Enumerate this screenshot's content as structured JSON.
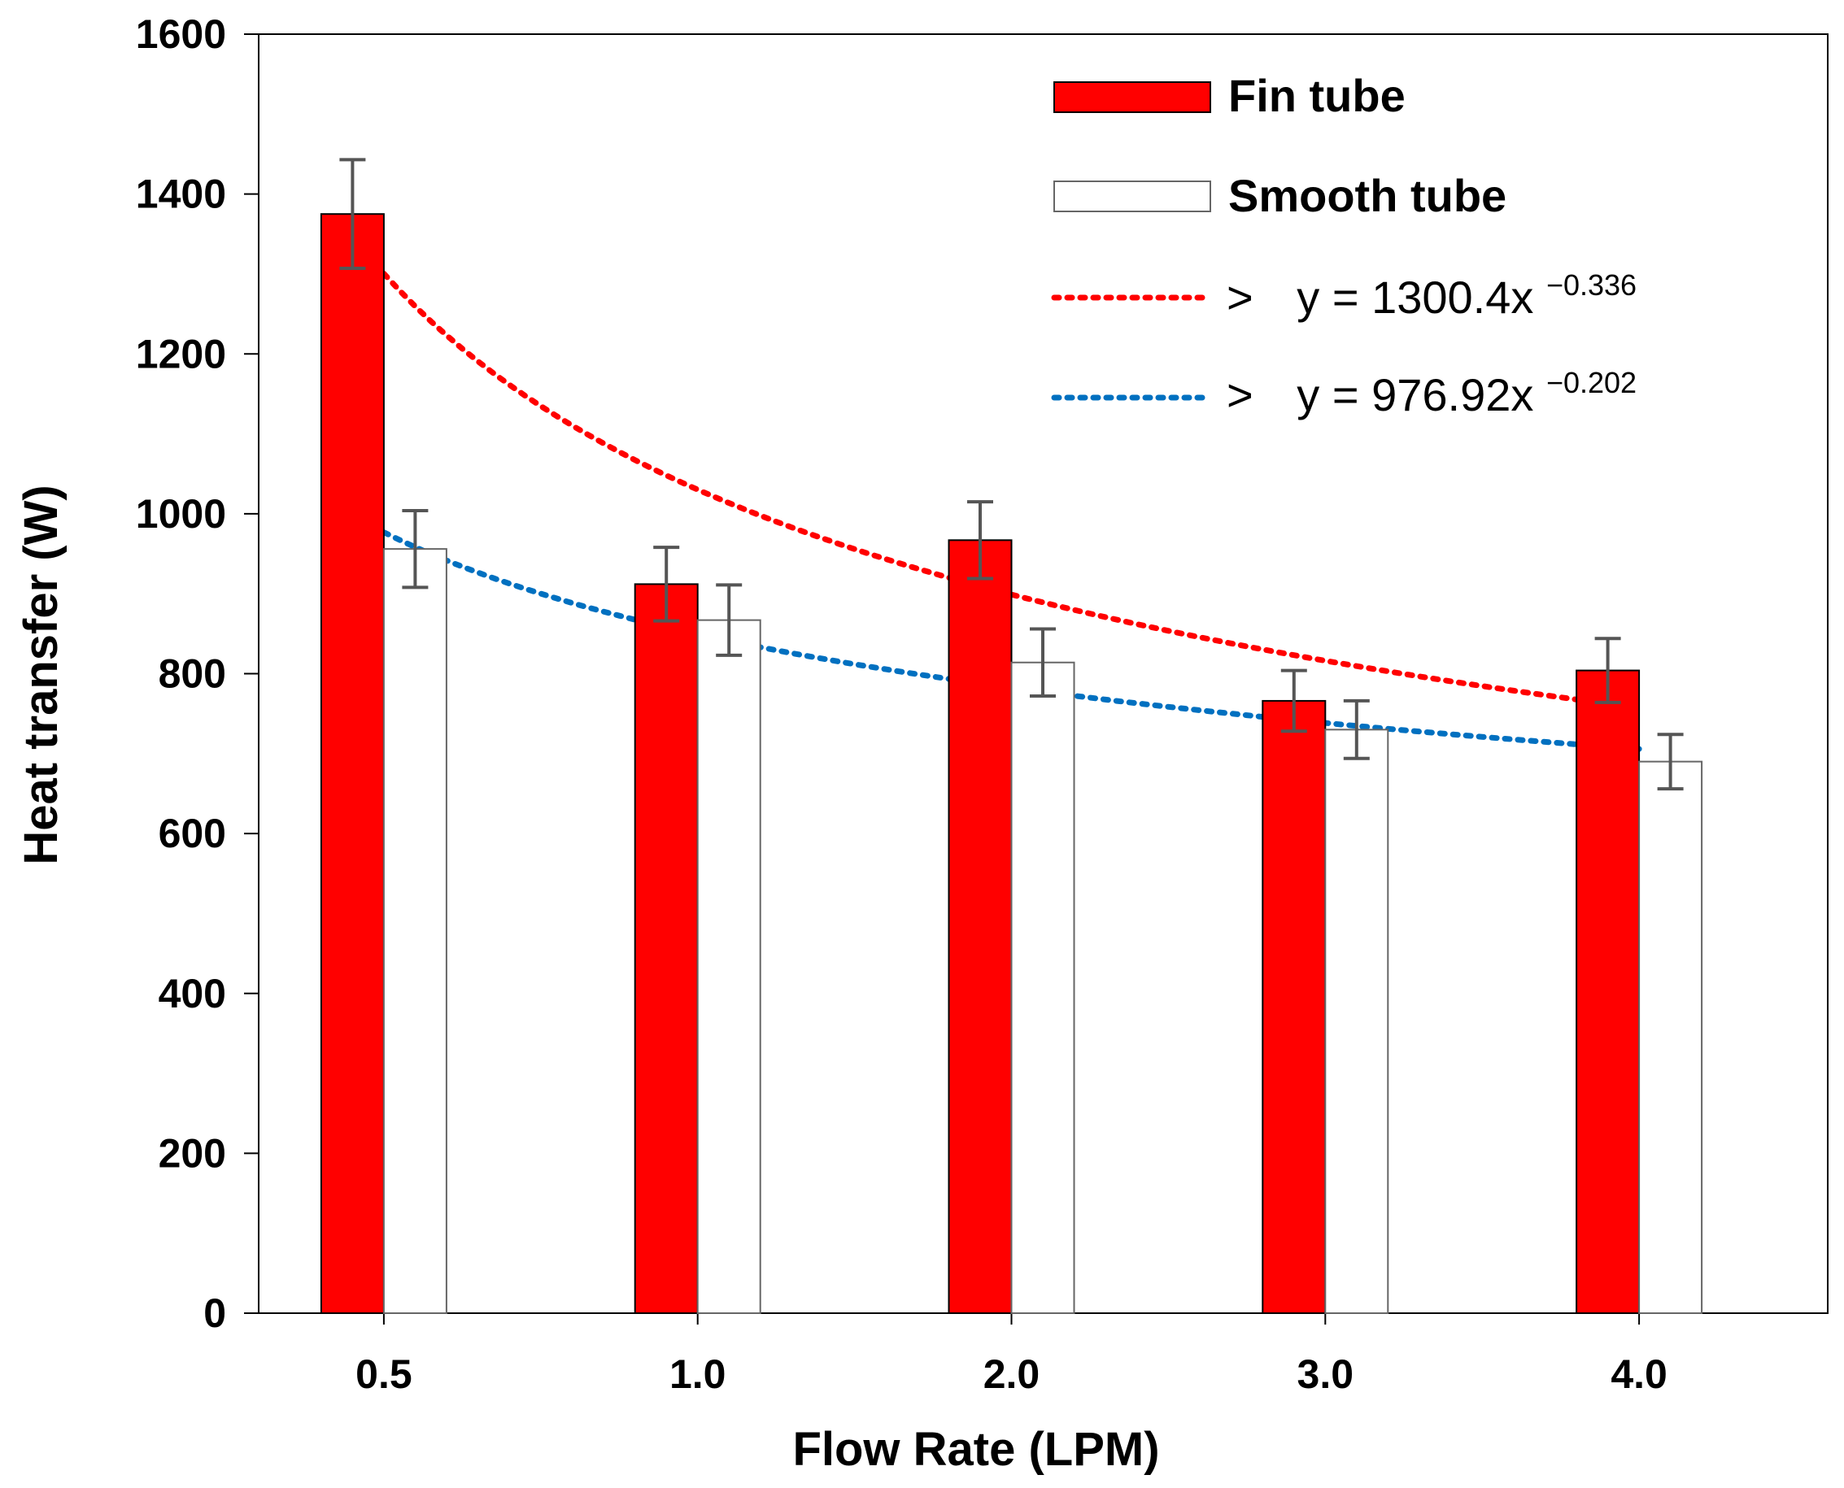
{
  "chart_data": {
    "type": "bar",
    "title": "",
    "xlabel": "Flow Rate (LPM)",
    "ylabel": "Heat transfer (W)",
    "categories": [
      "0.5",
      "1.0",
      "2.0",
      "3.0",
      "4.0"
    ],
    "ylim": [
      0,
      1600
    ],
    "yticks": [
      "0",
      "200",
      "400",
      "600",
      "800",
      "1000",
      "1200",
      "1400",
      "1600"
    ],
    "grid": false,
    "legend_position": "top-right",
    "series": [
      {
        "name": "Fin tube",
        "color": "#ff0000",
        "values": [
          1375,
          912,
          967,
          766,
          804
        ],
        "error": [
          68,
          46,
          48,
          38,
          40
        ]
      },
      {
        "name": "Smooth tube",
        "color": "#ffffff",
        "values": [
          956,
          867,
          814,
          730,
          690
        ],
        "error": [
          48,
          44,
          42,
          36,
          34
        ]
      }
    ],
    "trendlines": [
      {
        "series": "Fin tube",
        "type": "power",
        "coefficient": 1300.4,
        "exponent": -0.336,
        "color": "#ff0000",
        "label_prefix": ">",
        "label_main": "y = 1300.4x",
        "label_exp": "−0.336"
      },
      {
        "series": "Smooth tube",
        "type": "power",
        "coefficient": 976.92,
        "exponent": -0.202,
        "color": "#0070c0",
        "label_prefix": ">",
        "label_main": "y = 976.92x",
        "label_exp": "−0.202"
      }
    ]
  }
}
